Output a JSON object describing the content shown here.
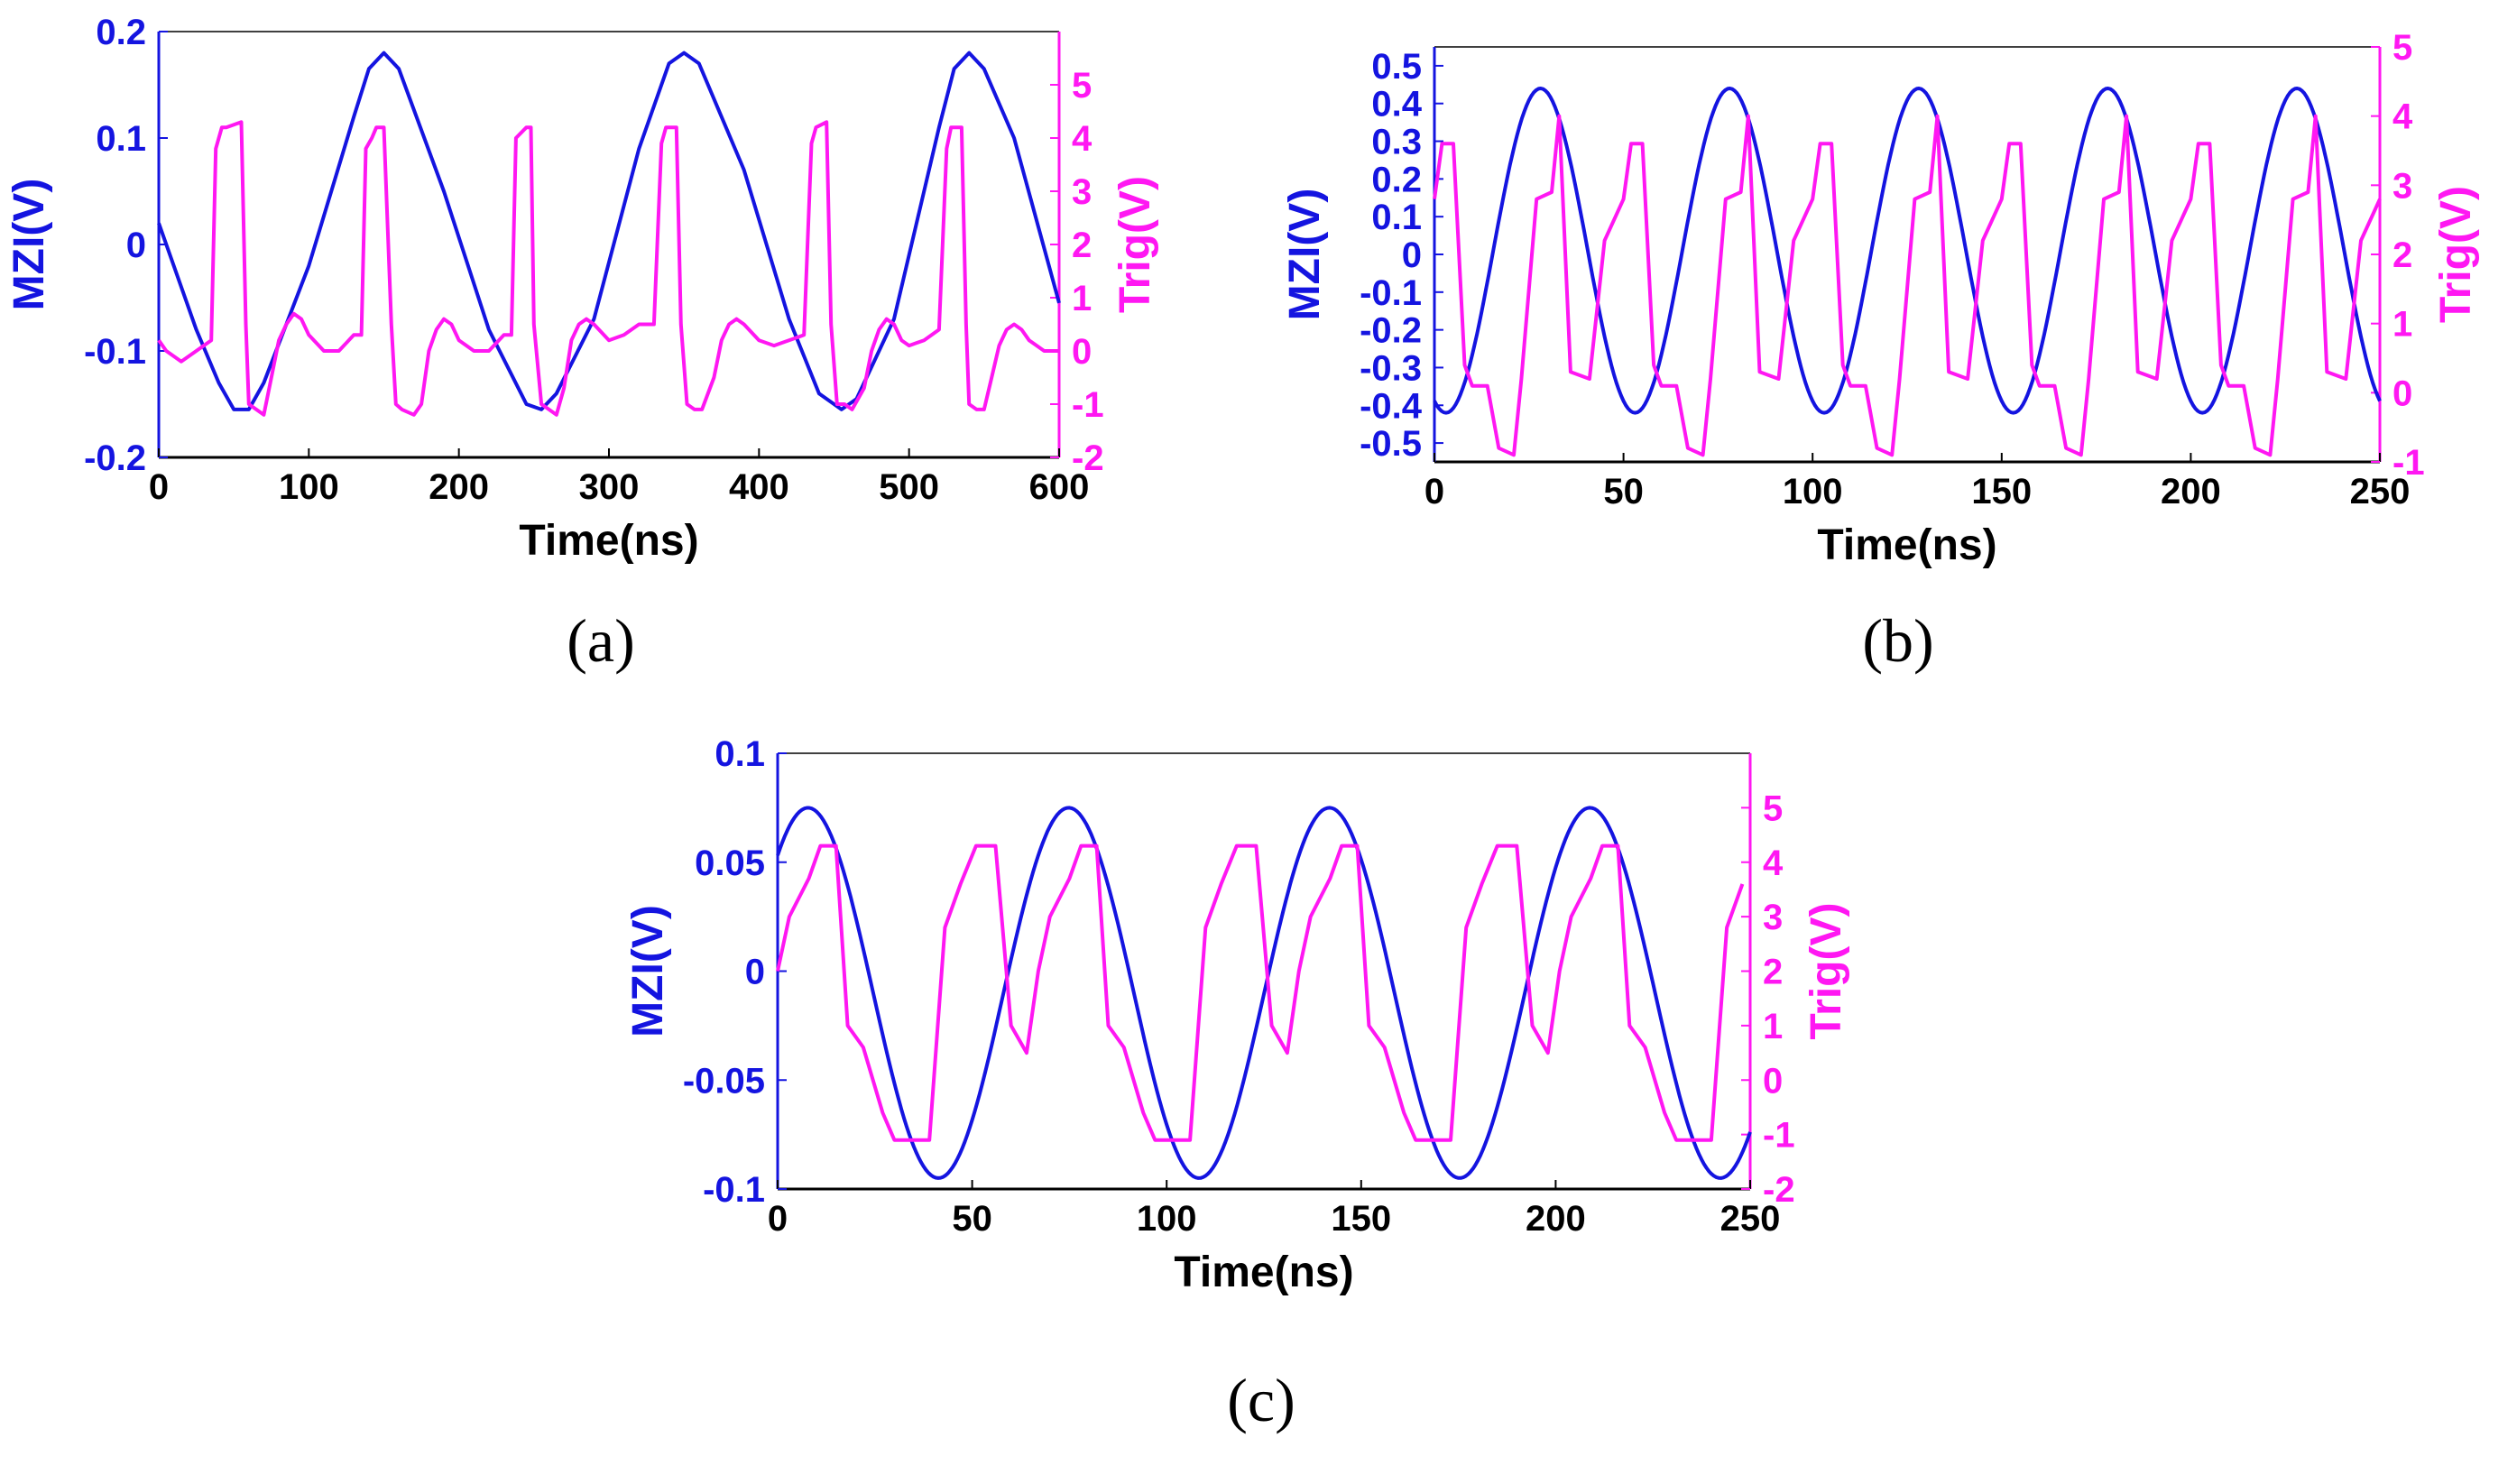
{
  "figure": {
    "panel_labels": [
      "(a)",
      "(b)",
      "(c)"
    ],
    "colors": {
      "mzi": "#1414e0",
      "trig": "#ff17f2",
      "axis": "#000000"
    }
  },
  "chart_data": [
    {
      "id": "a",
      "type": "line",
      "panel_label": "(a)",
      "xlabel": "Time(ns)",
      "ylabel_left": "MZI(V)",
      "ylabel_right": "Trig(V)",
      "xlim": [
        0,
        600
      ],
      "ylim_left": [
        -0.2,
        0.2
      ],
      "ylim_right": [
        -2,
        6
      ],
      "xticks": [
        0,
        100,
        200,
        300,
        400,
        500,
        600
      ],
      "xtick_labels": [
        "0",
        "100",
        "200",
        "300",
        "400",
        "500",
        "600"
      ],
      "yticks_left": [
        -0.2,
        -0.1,
        0,
        0.1,
        0.2
      ],
      "ytick_labels_left": [
        "-0.2",
        "-0.1",
        "0",
        "0.1",
        "0.2"
      ],
      "yticks_right": [
        -2,
        -1,
        0,
        1,
        2,
        3,
        4,
        5
      ],
      "ytick_labels_right": [
        "-2",
        "-1",
        "0",
        "1",
        "2",
        "3",
        "4",
        "5"
      ],
      "series": [
        {
          "name": "MZI(V)",
          "axis": "left",
          "color": "#1414e0",
          "x": [
            0,
            25,
            40,
            50,
            60,
            70,
            100,
            130,
            140,
            150,
            160,
            190,
            220,
            245,
            255,
            265,
            290,
            320,
            340,
            350,
            360,
            390,
            420,
            440,
            455,
            465,
            490,
            520,
            530,
            540,
            550,
            570,
            600
          ],
          "y": [
            0.02,
            -0.08,
            -0.13,
            -0.155,
            -0.155,
            -0.13,
            -0.02,
            0.12,
            0.165,
            0.18,
            0.165,
            0.05,
            -0.08,
            -0.15,
            -0.155,
            -0.14,
            -0.07,
            0.09,
            0.17,
            0.18,
            0.17,
            0.07,
            -0.07,
            -0.14,
            -0.155,
            -0.145,
            -0.07,
            0.11,
            0.165,
            0.18,
            0.165,
            0.1,
            -0.055
          ]
        },
        {
          "name": "Trig(V)",
          "axis": "right",
          "color": "#ff17f2",
          "x": [
            0,
            5,
            15,
            25,
            35,
            38,
            42,
            45,
            55,
            58,
            60,
            65,
            70,
            75,
            80,
            85,
            90,
            95,
            100,
            110,
            120,
            130,
            135,
            138,
            142,
            145,
            150,
            155,
            158,
            162,
            170,
            175,
            180,
            185,
            190,
            195,
            200,
            210,
            220,
            230,
            235,
            238,
            245,
            248,
            250,
            255,
            260,
            265,
            270,
            275,
            280,
            285,
            290,
            300,
            310,
            320,
            330,
            335,
            338,
            345,
            348,
            352,
            357,
            362,
            370,
            375,
            380,
            385,
            390,
            400,
            410,
            420,
            430,
            435,
            438,
            445,
            448,
            452,
            457,
            462,
            470,
            475,
            480,
            485,
            490,
            495,
            500,
            510,
            520,
            525,
            528,
            535,
            538,
            540,
            545,
            550,
            555,
            560,
            565,
            570,
            575,
            580,
            590,
            600
          ],
          "y": [
            0.2,
            0.0,
            -0.2,
            0.0,
            0.2,
            3.8,
            4.2,
            4.2,
            4.3,
            0.5,
            -1.0,
            -1.1,
            -1.2,
            -0.5,
            0.2,
            0.5,
            0.7,
            0.6,
            0.3,
            0.0,
            0.0,
            0.3,
            0.3,
            3.8,
            4.0,
            4.2,
            4.2,
            0.5,
            -1.0,
            -1.1,
            -1.2,
            -1.0,
            0.0,
            0.4,
            0.6,
            0.5,
            0.2,
            0.0,
            0.0,
            0.3,
            0.3,
            4.0,
            4.2,
            4.2,
            0.5,
            -1.0,
            -1.1,
            -1.2,
            -0.7,
            0.2,
            0.5,
            0.6,
            0.5,
            0.2,
            0.3,
            0.5,
            0.5,
            3.9,
            4.2,
            4.2,
            0.5,
            -1.0,
            -1.1,
            -1.1,
            -0.5,
            0.2,
            0.5,
            0.6,
            0.5,
            0.2,
            0.1,
            0.2,
            0.3,
            3.9,
            4.2,
            4.3,
            0.5,
            -1.0,
            -1.0,
            -1.1,
            -0.7,
            0.0,
            0.4,
            0.6,
            0.5,
            0.2,
            0.1,
            0.2,
            0.4,
            3.8,
            4.2,
            4.2,
            0.5,
            -1.0,
            -1.1,
            -1.1,
            -0.5,
            0.1,
            0.4,
            0.5,
            0.4,
            0.2,
            0.0,
            0.0
          ]
        }
      ]
    },
    {
      "id": "b",
      "type": "line",
      "panel_label": "(b)",
      "xlabel": "Time(ns)",
      "ylabel_left": "MZI(V)",
      "ylabel_right": "Trig(V)",
      "xlim": [
        0,
        250
      ],
      "ylim_left": [
        -0.55,
        0.55
      ],
      "ylim_right": [
        -1,
        5
      ],
      "xticks": [
        0,
        50,
        100,
        150,
        200,
        250
      ],
      "xtick_labels": [
        "0",
        "50",
        "100",
        "150",
        "200",
        "250"
      ],
      "yticks_left": [
        -0.5,
        -0.4,
        -0.3,
        -0.2,
        -0.1,
        0,
        0.1,
        0.2,
        0.3,
        0.4,
        0.5
      ],
      "ytick_labels_left": [
        "-0.5",
        "-0.4",
        "-0.3",
        "-0.2",
        "-0.1",
        "0",
        "0.1",
        "0.2",
        "0.3",
        "0.4",
        "0.5"
      ],
      "yticks_right": [
        -1,
        0,
        1,
        2,
        3,
        4,
        5
      ],
      "ytick_labels_right": [
        "-1",
        "0",
        "1",
        "2",
        "3",
        "4",
        "5"
      ],
      "series": [
        {
          "name": "MZI(V)",
          "axis": "left",
          "color": "#1414e0",
          "function": "sine",
          "amplitude": 0.43,
          "offset": 0.01,
          "period": 50,
          "phase_deg": -112,
          "x_start": 0,
          "x_end": 250,
          "clip_min": -0.42,
          "clip_max": 0.44
        },
        {
          "name": "Trig(V)",
          "axis": "right",
          "color": "#ff17f2",
          "period": 50,
          "cycle_x": [
            0,
            2,
            5,
            8,
            10,
            14,
            17,
            21,
            23,
            27,
            31,
            33,
            36,
            41,
            45,
            50
          ],
          "cycle_y": [
            2.8,
            3.6,
            3.6,
            0.4,
            0.1,
            0.1,
            -0.8,
            -0.9,
            0.2,
            2.8,
            2.9,
            4.0,
            0.3,
            0.2,
            2.2,
            2.8
          ],
          "x_start": 0,
          "x_end": 250
        }
      ]
    },
    {
      "id": "c",
      "type": "line",
      "panel_label": "(c)",
      "xlabel": "Time(ns)",
      "ylabel_left": "MZI(V)",
      "ylabel_right": "Trig(V)",
      "xlim": [
        0,
        250
      ],
      "ylim_left": [
        -0.1,
        0.1
      ],
      "ylim_right": [
        -2,
        6
      ],
      "xticks": [
        0,
        50,
        100,
        150,
        200,
        250
      ],
      "xtick_labels": [
        "0",
        "50",
        "100",
        "150",
        "200",
        "250"
      ],
      "yticks_left": [
        -0.1,
        -0.05,
        0,
        0.05,
        0.1
      ],
      "ytick_labels_left": [
        "-0.1",
        "-0.05",
        "0",
        "0.05",
        "0.1"
      ],
      "yticks_right": [
        -2,
        -1,
        0,
        1,
        2,
        3,
        4,
        5
      ],
      "ytick_labels_right": [
        "-2",
        "-1",
        "0",
        "1",
        "2",
        "3",
        "4",
        "5"
      ],
      "series": [
        {
          "name": "MZI(V)",
          "axis": "left",
          "color": "#1414e0",
          "function": "sine",
          "amplitude": 0.085,
          "offset": -0.01,
          "period": 67,
          "phase_deg": 48,
          "x_start": 0,
          "x_end": 250
        },
        {
          "name": "Trig(V)",
          "axis": "right",
          "color": "#ff17f2",
          "period": 67,
          "cycle_x": [
            0,
            3,
            8,
            11,
            15,
            18,
            22,
            27,
            30,
            35,
            39,
            43,
            47,
            51,
            56,
            60,
            64,
            67
          ],
          "cycle_y": [
            2.0,
            3.0,
            3.7,
            4.3,
            4.3,
            1.0,
            0.6,
            -0.6,
            -1.1,
            -1.1,
            -1.1,
            2.8,
            3.6,
            4.3,
            4.3,
            1.0,
            0.5,
            2.0
          ],
          "x_start": 0,
          "x_end": 250
        }
      ]
    }
  ]
}
